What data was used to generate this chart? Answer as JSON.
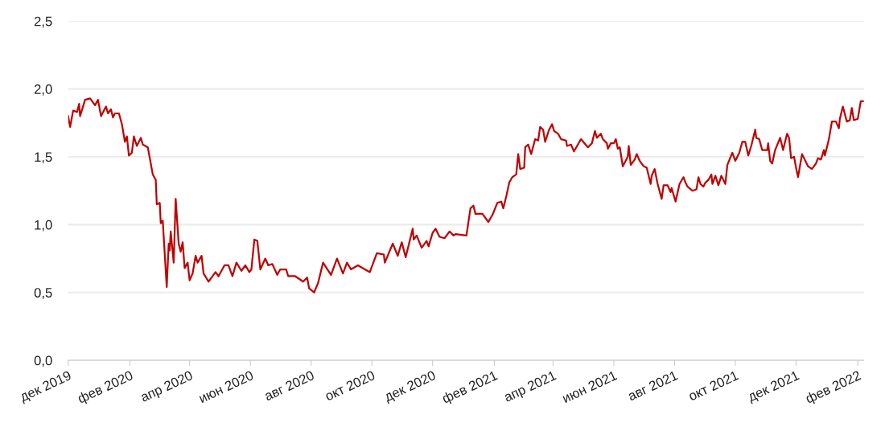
{
  "chart_data": {
    "type": "line",
    "grid": "y",
    "marker": "none",
    "line_style": "solid",
    "xlim": [
      "2019-12-01",
      "2022-02-07"
    ],
    "xticks": [
      {
        "value": "2019-12-01",
        "label": "дек 2019"
      },
      {
        "value": "2020-02-01",
        "label": "фев 2020"
      },
      {
        "value": "2020-04-01",
        "label": "апр 2020"
      },
      {
        "value": "2020-06-01",
        "label": "июн 2020"
      },
      {
        "value": "2020-08-01",
        "label": "авг 2020"
      },
      {
        "value": "2020-10-01",
        "label": "окт 2020"
      },
      {
        "value": "2020-12-01",
        "label": "дек 2020"
      },
      {
        "value": "2021-02-01",
        "label": "фев 2021"
      },
      {
        "value": "2021-04-01",
        "label": "апр 2021"
      },
      {
        "value": "2021-06-01",
        "label": "июн 2021"
      },
      {
        "value": "2021-08-01",
        "label": "авг 2021"
      },
      {
        "value": "2021-10-01",
        "label": "окт 2021"
      },
      {
        "value": "2021-12-01",
        "label": "дек 2021"
      },
      {
        "value": "2022-02-01",
        "label": "фев 2022"
      }
    ],
    "ylim": [
      0,
      2.5
    ],
    "yticks": [
      {
        "value": 0,
        "label": "0,0"
      },
      {
        "value": 0.5,
        "label": "0,5"
      },
      {
        "value": 1,
        "label": "1,0"
      },
      {
        "value": 1.5,
        "label": "1,5"
      },
      {
        "value": 2,
        "label": "2,0"
      },
      {
        "value": 2.5,
        "label": "2,5"
      }
    ],
    "x": [
      "2019-12-01",
      "2019-12-03",
      "2019-12-06",
      "2019-12-10",
      "2019-12-12",
      "2019-12-13",
      "2019-12-18",
      "2019-12-23",
      "2019-12-28",
      "2019-12-31",
      "2020-01-03",
      "2020-01-08",
      "2020-01-10",
      "2020-01-13",
      "2020-01-15",
      "2020-01-17",
      "2020-01-21",
      "2020-01-24",
      "2020-01-27",
      "2020-01-29",
      "2020-01-31",
      "2020-02-03",
      "2020-02-05",
      "2020-02-08",
      "2020-02-12",
      "2020-02-14",
      "2020-02-19",
      "2020-02-24",
      "2020-02-27",
      "2020-02-28",
      "2020-03-02",
      "2020-03-03",
      "2020-03-05",
      "2020-03-09",
      "2020-03-11",
      "2020-03-12",
      "2020-03-13",
      "2020-03-16",
      "2020-03-18",
      "2020-03-21",
      "2020-03-23",
      "2020-03-25",
      "2020-03-27",
      "2020-03-30",
      "2020-04-01",
      "2020-04-04",
      "2020-04-07",
      "2020-04-09",
      "2020-04-13",
      "2020-04-15",
      "2020-04-20",
      "2020-04-27",
      "2020-04-30",
      "2020-05-06",
      "2020-05-10",
      "2020-05-14",
      "2020-05-18",
      "2020-05-23",
      "2020-05-27",
      "2020-05-31",
      "2020-06-02",
      "2020-06-05",
      "2020-06-08",
      "2020-06-11",
      "2020-06-16",
      "2020-06-19",
      "2020-06-23",
      "2020-06-28",
      "2020-07-01",
      "2020-07-07",
      "2020-07-09",
      "2020-07-16",
      "2020-07-24",
      "2020-07-28",
      "2020-07-30",
      "2020-08-04",
      "2020-08-08",
      "2020-08-13",
      "2020-08-21",
      "2020-08-27",
      "2020-09-02",
      "2020-09-06",
      "2020-09-10",
      "2020-09-17",
      "2020-09-29",
      "2020-10-06",
      "2020-10-13",
      "2020-10-14",
      "2020-10-22",
      "2020-10-27",
      "2020-10-31",
      "2020-11-04",
      "2020-11-11",
      "2020-11-12",
      "2020-11-15",
      "2020-11-20",
      "2020-11-25",
      "2020-11-27",
      "2020-12-01",
      "2020-12-04",
      "2020-12-08",
      "2020-12-13",
      "2020-12-18",
      "2020-12-22",
      "2020-12-24",
      "2021-01-04",
      "2021-01-08",
      "2021-01-11",
      "2021-01-13",
      "2021-01-20",
      "2021-01-26",
      "2021-01-30",
      "2021-02-04",
      "2021-02-08",
      "2021-02-10",
      "2021-02-13",
      "2021-02-16",
      "2021-02-19",
      "2021-02-23",
      "2021-02-25",
      "2021-02-27",
      "2021-03-03",
      "2021-03-04",
      "2021-03-07",
      "2021-03-10",
      "2021-03-14",
      "2021-03-17",
      "2021-03-19",
      "2021-03-22",
      "2021-03-24",
      "2021-03-28",
      "2021-03-31",
      "2021-04-02",
      "2021-04-06",
      "2021-04-09",
      "2021-04-14",
      "2021-04-15",
      "2021-04-19",
      "2021-04-22",
      "2021-04-29",
      "2021-05-06",
      "2021-05-10",
      "2021-05-13",
      "2021-05-15",
      "2021-05-19",
      "2021-05-21",
      "2021-05-25",
      "2021-05-26",
      "2021-05-29",
      "2021-06-01",
      "2021-06-03",
      "2021-06-05",
      "2021-06-07",
      "2021-06-10",
      "2021-06-15",
      "2021-06-16",
      "2021-06-18",
      "2021-06-22",
      "2021-06-24",
      "2021-06-27",
      "2021-07-01",
      "2021-07-04",
      "2021-07-08",
      "2021-07-09",
      "2021-07-12",
      "2021-07-15",
      "2021-07-19",
      "2021-07-21",
      "2021-07-25",
      "2021-07-28",
      "2021-07-29",
      "2021-08-02",
      "2021-08-06",
      "2021-08-10",
      "2021-08-12",
      "2021-08-14",
      "2021-08-19",
      "2021-08-23",
      "2021-08-25",
      "2021-08-27",
      "2021-08-30",
      "2021-09-01",
      "2021-09-04",
      "2021-09-07",
      "2021-09-08",
      "2021-09-11",
      "2021-09-14",
      "2021-09-17",
      "2021-09-21",
      "2021-09-23",
      "2021-09-28",
      "2021-10-01",
      "2021-10-05",
      "2021-10-08",
      "2021-10-11",
      "2021-10-14",
      "2021-10-17",
      "2021-10-21",
      "2021-10-22",
      "2021-10-25",
      "2021-10-28",
      "2021-11-02",
      "2021-11-03",
      "2021-11-05",
      "2021-11-07",
      "2021-11-10",
      "2021-11-15",
      "2021-11-18",
      "2021-11-22",
      "2021-11-24",
      "2021-11-26",
      "2021-11-29",
      "2021-12-01",
      "2021-12-03",
      "2021-12-07",
      "2021-12-13",
      "2021-12-17",
      "2021-12-21",
      "2021-12-23",
      "2021-12-26",
      "2021-12-29",
      "2021-12-30",
      "2022-01-03",
      "2022-01-06",
      "2022-01-10",
      "2022-01-13",
      "2022-01-14",
      "2022-01-17",
      "2022-01-21",
      "2022-01-24",
      "2022-01-26",
      "2022-01-28",
      "2022-02-01",
      "2022-02-04",
      "2022-02-07"
    ],
    "series": [
      {
        "color": "#c00000",
        "values": [
          1.8,
          1.72,
          1.84,
          1.83,
          1.89,
          1.8,
          1.92,
          1.93,
          1.88,
          1.92,
          1.8,
          1.87,
          1.82,
          1.85,
          1.79,
          1.82,
          1.82,
          1.74,
          1.61,
          1.65,
          1.51,
          1.53,
          1.65,
          1.58,
          1.64,
          1.59,
          1.57,
          1.37,
          1.33,
          1.15,
          1.16,
          1.01,
          1.03,
          0.54,
          0.86,
          0.81,
          0.95,
          0.72,
          1.19,
          0.86,
          0.8,
          0.87,
          0.68,
          0.72,
          0.59,
          0.64,
          0.77,
          0.72,
          0.77,
          0.64,
          0.58,
          0.65,
          0.62,
          0.7,
          0.7,
          0.62,
          0.72,
          0.66,
          0.7,
          0.65,
          0.67,
          0.89,
          0.88,
          0.67,
          0.75,
          0.7,
          0.71,
          0.63,
          0.67,
          0.67,
          0.62,
          0.62,
          0.58,
          0.61,
          0.53,
          0.5,
          0.57,
          0.72,
          0.63,
          0.75,
          0.64,
          0.72,
          0.67,
          0.7,
          0.65,
          0.79,
          0.78,
          0.72,
          0.86,
          0.77,
          0.87,
          0.76,
          0.97,
          0.89,
          0.92,
          0.83,
          0.88,
          0.84,
          0.94,
          0.97,
          0.91,
          0.9,
          0.95,
          0.92,
          0.93,
          0.92,
          1.12,
          1.14,
          1.08,
          1.08,
          1.02,
          1.07,
          1.16,
          1.17,
          1.12,
          1.21,
          1.31,
          1.35,
          1.37,
          1.52,
          1.41,
          1.42,
          1.57,
          1.59,
          1.52,
          1.63,
          1.62,
          1.72,
          1.7,
          1.61,
          1.7,
          1.74,
          1.69,
          1.67,
          1.63,
          1.62,
          1.58,
          1.59,
          1.54,
          1.63,
          1.57,
          1.6,
          1.69,
          1.64,
          1.67,
          1.63,
          1.6,
          1.56,
          1.6,
          1.6,
          1.63,
          1.56,
          1.57,
          1.43,
          1.5,
          1.58,
          1.44,
          1.48,
          1.52,
          1.47,
          1.43,
          1.42,
          1.3,
          1.36,
          1.41,
          1.3,
          1.19,
          1.29,
          1.29,
          1.24,
          1.27,
          1.17,
          1.3,
          1.35,
          1.31,
          1.28,
          1.25,
          1.26,
          1.35,
          1.3,
          1.28,
          1.31,
          1.33,
          1.37,
          1.3,
          1.36,
          1.29,
          1.36,
          1.3,
          1.44,
          1.53,
          1.47,
          1.53,
          1.61,
          1.61,
          1.51,
          1.58,
          1.7,
          1.64,
          1.63,
          1.55,
          1.55,
          1.6,
          1.47,
          1.45,
          1.55,
          1.64,
          1.55,
          1.67,
          1.64,
          1.49,
          1.5,
          1.42,
          1.35,
          1.52,
          1.43,
          1.41,
          1.45,
          1.49,
          1.48,
          1.55,
          1.51,
          1.63,
          1.76,
          1.76,
          1.71,
          1.78,
          1.87,
          1.76,
          1.77,
          1.86,
          1.77,
          1.78,
          1.91,
          1.91
        ]
      }
    ]
  }
}
